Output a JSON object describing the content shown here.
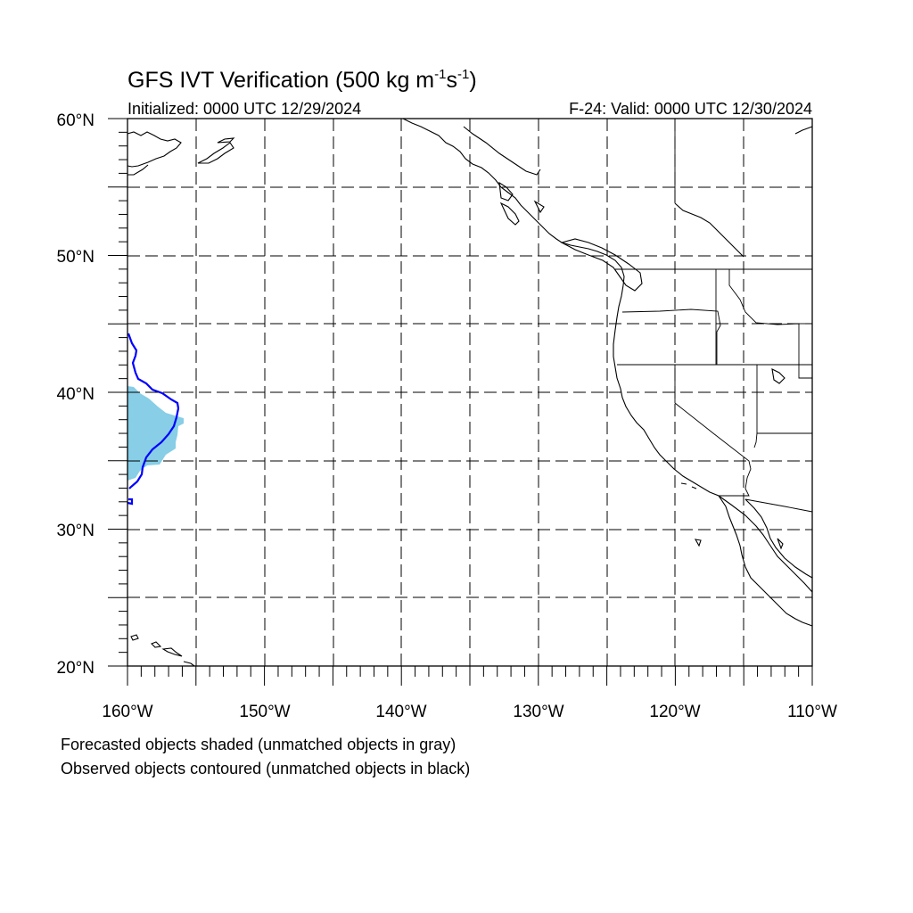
{
  "title": {
    "main": "GFS IVT Verification (500 kg m",
    "sup1": "-1",
    "mid": "s",
    "sup2": "-1",
    "end": ")"
  },
  "initialized": "Initialized: 0000 UTC 12/29/2024",
  "valid": "F-24: Valid: 0000 UTC 12/30/2024",
  "map": {
    "lon_range": [
      -160,
      -110
    ],
    "lat_range": [
      20,
      60
    ],
    "lat_labels": [
      "20°N",
      "30°N",
      "40°N",
      "50°N",
      "60°N"
    ],
    "lon_labels": [
      "160°W",
      "150°W",
      "140°W",
      "130°W",
      "120°W",
      "110°W"
    ],
    "grid": "dashed every 5 degrees",
    "forecast_fill_color": "#87CEE6",
    "observed_contour_color": "#0000FF",
    "coast_color": "#000000"
  },
  "footer": {
    "line1": "Forecasted objects shaded (unmatched objects in gray)",
    "line2": "Observed objects contoured (unmatched objects in black)"
  }
}
